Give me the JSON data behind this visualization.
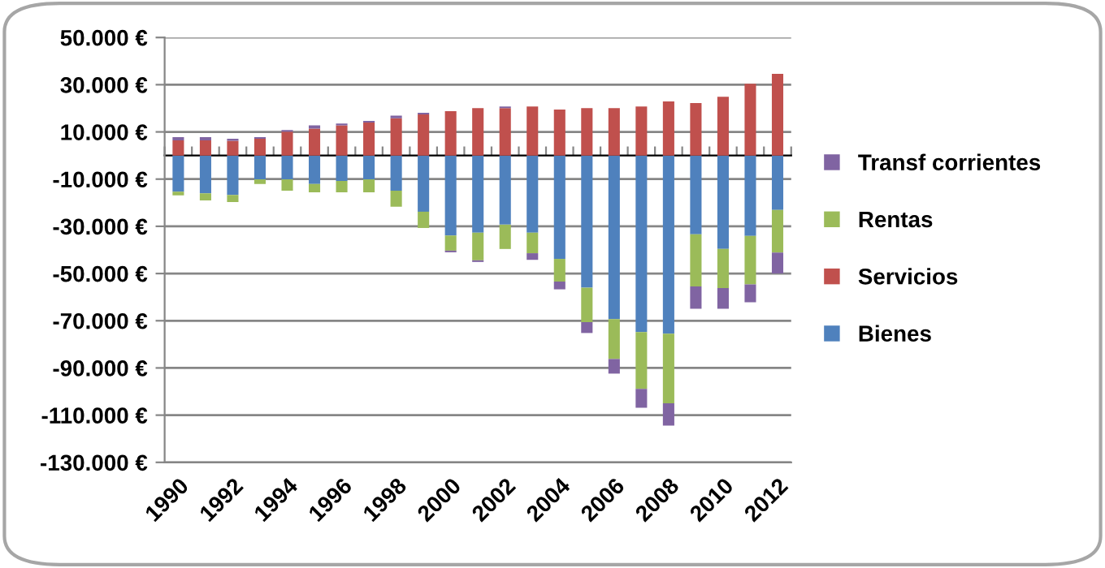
{
  "chart_data": {
    "type": "bar",
    "stacked": true,
    "categories": [
      "1990",
      null,
      "1992",
      null,
      "1994",
      null,
      "1996",
      null,
      "1998",
      null,
      "2000",
      null,
      "2002",
      null,
      "2004",
      null,
      "2006",
      null,
      "2008",
      null,
      "2010",
      null,
      "2012"
    ],
    "series": [
      {
        "name": "Bienes",
        "color": "#4f81bd",
        "values": [
          -15300,
          -16000,
          -16700,
          -10100,
          -10100,
          -12100,
          -10800,
          -10100,
          -14900,
          -23800,
          -33900,
          -32700,
          -29300,
          -32700,
          -43800,
          -56000,
          -69300,
          -74800,
          -75500,
          -33400,
          -39600,
          -34100,
          -23100
        ]
      },
      {
        "name": "Servicios",
        "color": "#c0504d",
        "values": [
          6400,
          6400,
          6200,
          7100,
          10100,
          11400,
          12800,
          14000,
          15800,
          17400,
          18800,
          20100,
          20100,
          20800,
          19500,
          20100,
          20100,
          20800,
          22900,
          22200,
          24900,
          30400,
          34600
        ]
      },
      {
        "name": "Rentas",
        "color": "#9bbb59",
        "values": [
          -1600,
          -3000,
          -3000,
          -2000,
          -4800,
          -3500,
          -4800,
          -5500,
          -6800,
          -6900,
          -6400,
          -11700,
          -10300,
          -8700,
          -9600,
          -14600,
          -16900,
          -24100,
          -29500,
          -22100,
          -16600,
          -20500,
          -18000
        ]
      },
      {
        "name": "Transf corrientes",
        "color": "#8064a2",
        "values": [
          1400,
          1400,
          900,
          700,
          700,
          1400,
          700,
          700,
          1100,
          700,
          -700,
          -700,
          700,
          -2800,
          -3300,
          -4600,
          -6200,
          -8000,
          -9400,
          -9400,
          -8700,
          -7600,
          -8900
        ]
      }
    ],
    "ylim": [
      -130000,
      50000
    ],
    "yticks": [
      {
        "value": -130000,
        "label": "-130.000 €"
      },
      {
        "value": -110000,
        "label": "-110.000 €"
      },
      {
        "value": -90000,
        "label": "-90.000 €"
      },
      {
        "value": -70000,
        "label": "-70.000 €"
      },
      {
        "value": -50000,
        "label": "-50.000 €"
      },
      {
        "value": -30000,
        "label": "-30.000 €"
      },
      {
        "value": -10000,
        "label": "-10.000 €"
      },
      {
        "value": 10000,
        "label": "10.000 €"
      },
      {
        "value": 30000,
        "label": "30.000 €"
      },
      {
        "value": 50000,
        "label": "50.000 €"
      }
    ],
    "grid": "y",
    "legend": "right"
  }
}
